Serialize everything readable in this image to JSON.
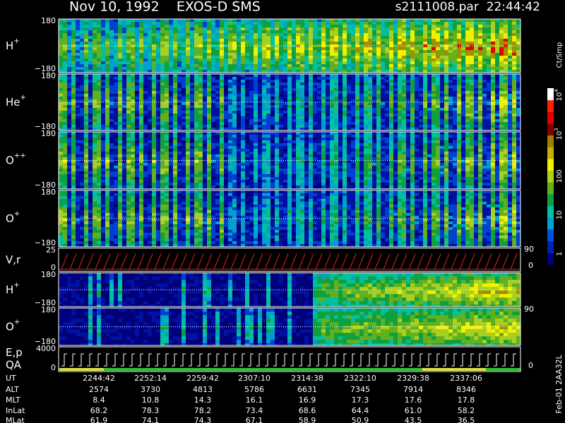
{
  "header": {
    "title": "Nov 10, 1992    EXOS-D SMS",
    "file": "s2111008.par  22:44:42"
  },
  "panels": [
    {
      "label": "H",
      "sup": "+",
      "top": "180",
      "bottom": "−180"
    },
    {
      "label": "He",
      "sup": "+",
      "top": "180",
      "bottom": "−180"
    },
    {
      "label": "O",
      "sup": "++",
      "top": "180",
      "bottom": "−180"
    },
    {
      "label": "O",
      "sup": "+",
      "top": "180",
      "bottom": "−180"
    },
    {
      "label": "V,r",
      "sup": "",
      "top": "25",
      "bottom": "0",
      "right_top": "90",
      "right_bottom": "0"
    },
    {
      "label": "H",
      "sup": "+",
      "top": "180",
      "bottom": "−180"
    },
    {
      "label": "O",
      "sup": "+",
      "top": "180",
      "bottom": "−180",
      "right_top": "90"
    },
    {
      "label": "E,p",
      "label2": "QA",
      "sup": "",
      "top": "4000",
      "bottom": "0",
      "right_bottom": "0"
    }
  ],
  "colorbar": {
    "unit": "Ct/Smp",
    "labels": [
      {
        "base": "10",
        "exp": "4"
      },
      {
        "base": "10",
        "exp": "3"
      },
      {
        "base": "100",
        "exp": ""
      },
      {
        "base": "10",
        "exp": ""
      },
      {
        "base": "1",
        "exp": ""
      }
    ]
  },
  "table": {
    "rows": [
      [
        "UT",
        "2244:42",
        "2252:14",
        "2259:42",
        "2307:10",
        "2314:38",
        "2322:10",
        "2329:38",
        "2337:06"
      ],
      [
        "ALT",
        "2574",
        "3730",
        "4813",
        "5786",
        "6631",
        "7345",
        "7914",
        "8346"
      ],
      [
        "MLT",
        "8.4",
        "10.8",
        "14.3",
        "16.1",
        "16.9",
        "17.3",
        "17.6",
        "17.8"
      ],
      [
        "InLat",
        "68.2",
        "78.3",
        "78.2",
        "73.4",
        "68.6",
        "64.4",
        "61.0",
        "58.2"
      ],
      [
        "MLat",
        "61.9",
        "74.1",
        "74.3",
        "67.1",
        "58.9",
        "50.9",
        "43.5",
        "36.5"
      ]
    ]
  },
  "footer": {
    "stamp": "Feb-01 2AA32L"
  }
}
